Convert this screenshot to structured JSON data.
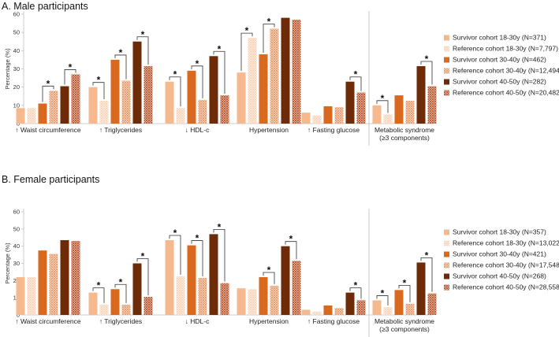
{
  "colors": {
    "survivor": [
      "#f6b88d",
      "#d9691e",
      "#6e2b08"
    ],
    "reference": [
      "#f9d3b8",
      "#e79b6b",
      "#b9542a"
    ],
    "axis": "#bfbfbf",
    "grid": "#e6e6e6",
    "divider": "#bbbbbb",
    "bracket": "#333333"
  },
  "icons": {
    "hatch": "reference-cohort-pattern-icon"
  },
  "chart_data": [
    {
      "type": "bar",
      "title": "A. Male participants",
      "ylabel": "Percentage (%)",
      "ylim": [
        0,
        60
      ],
      "yticks": [
        0,
        10,
        20,
        30,
        40,
        50,
        60
      ],
      "categories": [
        "↑ Waist circumference",
        "↑ Triglycerides",
        "↓ HDL-c",
        "Hypertension",
        "↑ Fasting glucose",
        "Metabolic syndrome|(≥3 components)"
      ],
      "series": [
        {
          "name": "Survivor cohort 18-30y (N=371)",
          "pattern": "solid",
          "values": [
            8.5,
            20,
            23,
            28,
            6,
            10
          ]
        },
        {
          "name": "Reference cohort 18-30y (N=7,797)",
          "pattern": "hatch",
          "values": [
            8.5,
            12.5,
            8.5,
            47,
            4.5,
            5
          ]
        },
        {
          "name": "Survivor cohort 30-40y (N=462)",
          "pattern": "solid",
          "values": [
            11,
            35,
            29,
            38,
            9.5,
            15.5
          ]
        },
        {
          "name": "Reference cohort 30-40y (N=12,494)",
          "pattern": "hatch",
          "values": [
            18,
            23.5,
            13,
            52,
            9,
            12.5
          ]
        },
        {
          "name": "Survivor cohort 40-50y (N=282)",
          "pattern": "solid",
          "values": [
            20.5,
            45,
            37,
            58,
            23,
            31.5
          ]
        },
        {
          "name": "Reference cohort 40-50y (N=20,482)",
          "pattern": "hatch",
          "values": [
            27,
            31.5,
            15.5,
            57,
            17,
            20.5
          ]
        }
      ],
      "significance": [
        {
          "category": 0,
          "pairs": [
            [
              2,
              3
            ],
            [
              4,
              5
            ]
          ]
        },
        {
          "category": 1,
          "pairs": [
            [
              0,
              1
            ],
            [
              2,
              3
            ],
            [
              4,
              5
            ]
          ]
        },
        {
          "category": 2,
          "pairs": [
            [
              0,
              1
            ],
            [
              2,
              3
            ],
            [
              4,
              5
            ]
          ]
        },
        {
          "category": 3,
          "pairs": [
            [
              0,
              1
            ],
            [
              2,
              3
            ]
          ]
        },
        {
          "category": 4,
          "pairs": [
            [
              4,
              5
            ]
          ]
        },
        {
          "category": 5,
          "pairs": [
            [
              0,
              1
            ],
            [
              4,
              5
            ]
          ]
        }
      ],
      "marker": "*"
    },
    {
      "type": "bar",
      "title": "B. Female participants",
      "ylabel": "Percentage (%)",
      "ylim": [
        0,
        60
      ],
      "yticks": [
        0,
        10,
        20,
        30,
        40,
        50,
        60
      ],
      "categories": [
        "↑ Waist circumference",
        "↑ Triglycerides",
        "↓ HDL-c",
        "Hypertension",
        "↑ Fasting glucose",
        "Metabolic syndrome|(≥3 components)"
      ],
      "series": [
        {
          "name": "Survivor cohort 18-30y (N=357)",
          "pattern": "solid",
          "values": [
            22,
            13,
            43.5,
            15.5,
            3,
            8.5
          ]
        },
        {
          "name": "Reference cohort 18-30y (N=13,022)",
          "pattern": "hatch",
          "values": [
            22,
            6,
            22.5,
            15,
            2,
            4.5
          ]
        },
        {
          "name": "Survivor cohort 30-40y (N=421)",
          "pattern": "solid",
          "values": [
            37.5,
            15,
            40.5,
            22,
            5.5,
            14.5
          ]
        },
        {
          "name": "Reference cohort 30-40y (N=17,548)",
          "pattern": "hatch",
          "values": [
            35.5,
            6,
            21.5,
            17,
            4,
            6.5
          ]
        },
        {
          "name": "Survivor cohort 40-50y (N=268)",
          "pattern": "solid",
          "values": [
            43.5,
            30,
            47,
            40,
            13,
            30.5
          ]
        },
        {
          "name": "Reference cohort 40-50y (N=28,558)",
          "pattern": "hatch",
          "values": [
            43,
            10.5,
            18.5,
            31.5,
            8.5,
            12.5
          ]
        }
      ],
      "significance": [
        {
          "category": 1,
          "pairs": [
            [
              0,
              1
            ],
            [
              2,
              3
            ],
            [
              4,
              5
            ]
          ]
        },
        {
          "category": 2,
          "pairs": [
            [
              0,
              1
            ],
            [
              2,
              3
            ],
            [
              4,
              5
            ]
          ]
        },
        {
          "category": 3,
          "pairs": [
            [
              2,
              3
            ],
            [
              4,
              5
            ]
          ]
        },
        {
          "category": 4,
          "pairs": [
            [
              4,
              5
            ]
          ]
        },
        {
          "category": 5,
          "pairs": [
            [
              0,
              1
            ],
            [
              2,
              3
            ],
            [
              4,
              5
            ]
          ]
        }
      ],
      "marker": "*"
    }
  ]
}
